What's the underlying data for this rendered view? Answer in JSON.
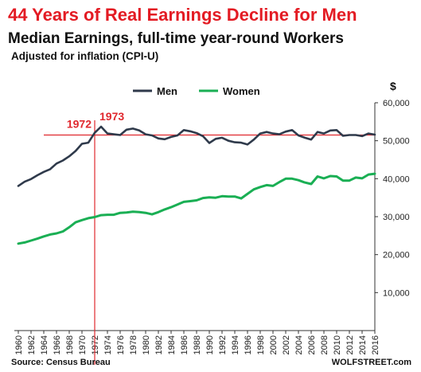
{
  "chart_data": {
    "type": "line",
    "title": "44 Years of Real Earnings Decline for Men",
    "subtitle": "Median Earnings, full-time year-round Workers",
    "note": "Adjusted for inflation (CPI-U)",
    "y_unit": "$",
    "source": "Source: Census Bureau",
    "site": "WOLFSTREET.com",
    "legend_position": "top-center",
    "grid": false,
    "ylim": [
      0,
      60000
    ],
    "xlim": [
      1960,
      2016
    ],
    "y_ticks": [
      "10,000",
      "20,000",
      "30,000",
      "40,000",
      "50,000",
      "60,000"
    ],
    "x_ticks": [
      "1960",
      "1962",
      "1964",
      "1966",
      "1968",
      "1970",
      "1972",
      "1974",
      "1976",
      "1978",
      "1980",
      "1982",
      "1984",
      "1986",
      "1988",
      "1990",
      "1992",
      "1994",
      "1996",
      "1998",
      "2000",
      "2002",
      "2004",
      "2006",
      "2008",
      "2010",
      "2012",
      "2014",
      "2016"
    ],
    "x": [
      1960,
      1961,
      1962,
      1963,
      1964,
      1965,
      1966,
      1967,
      1968,
      1969,
      1970,
      1971,
      1972,
      1973,
      1974,
      1975,
      1976,
      1977,
      1978,
      1979,
      1980,
      1981,
      1982,
      1983,
      1984,
      1985,
      1986,
      1987,
      1988,
      1989,
      1990,
      1991,
      1992,
      1993,
      1994,
      1995,
      1996,
      1997,
      1998,
      1999,
      2000,
      2001,
      2002,
      2003,
      2004,
      2005,
      2006,
      2007,
      2008,
      2009,
      2010,
      2011,
      2012,
      2013,
      2014,
      2015,
      2016
    ],
    "series": [
      {
        "name": "Men",
        "color": "#2f3a4b",
        "values": [
          38100,
          39200,
          39900,
          40900,
          41800,
          42500,
          44000,
          44800,
          45900,
          47300,
          49200,
          49500,
          52100,
          53700,
          51900,
          51700,
          51500,
          52900,
          53200,
          52700,
          51700,
          51400,
          50600,
          50400,
          51000,
          51400,
          52800,
          52500,
          52000,
          51200,
          49400,
          50500,
          50800,
          50000,
          49600,
          49500,
          49000,
          50300,
          51900,
          52300,
          51900,
          51700,
          52400,
          52800,
          51400,
          50800,
          50300,
          52300,
          51900,
          52700,
          52800,
          51300,
          51500,
          51500,
          51200,
          51900,
          51600
        ]
      },
      {
        "name": "Women",
        "color": "#1aaf54",
        "values": [
          22900,
          23200,
          23700,
          24200,
          24800,
          25300,
          25600,
          26100,
          27200,
          28500,
          29100,
          29600,
          29900,
          30400,
          30500,
          30500,
          31000,
          31100,
          31300,
          31200,
          31000,
          30600,
          31200,
          31900,
          32500,
          33200,
          33900,
          34100,
          34300,
          34900,
          35100,
          35000,
          35400,
          35300,
          35300,
          34800,
          36000,
          37200,
          37800,
          38300,
          38100,
          39100,
          40000,
          40000,
          39600,
          39000,
          38600,
          40600,
          40100,
          40700,
          40600,
          39500,
          39500,
          40300,
          40100,
          41100,
          41300
        ]
      }
    ],
    "reference_line": {
      "value": 51500,
      "color": "#e0282e"
    },
    "vertical_marker": {
      "x": 1972,
      "color": "#e0282e"
    },
    "annotations": [
      {
        "text": "1972",
        "x": 1972
      },
      {
        "text": "1973",
        "x": 1973
      }
    ]
  }
}
